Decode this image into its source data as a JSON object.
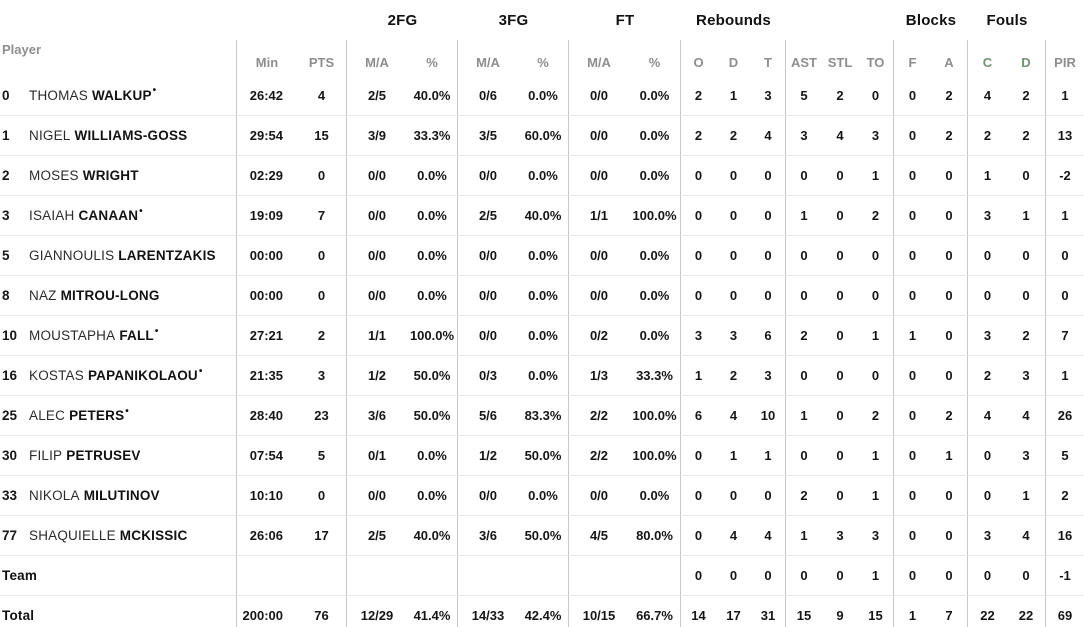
{
  "table": {
    "groups": {
      "fg2": "2FG",
      "fg3": "3FG",
      "ft": "FT",
      "rebounds": "Rebounds",
      "blocks": "Blocks",
      "fouls": "Fouls"
    },
    "headers": {
      "player": "Player",
      "min": "Min",
      "pts": "PTS",
      "ma": "M/A",
      "pct": "%",
      "reb_o": "O",
      "reb_d": "D",
      "reb_t": "T",
      "ast": "AST",
      "stl": "STL",
      "to": "TO",
      "blk_f": "F",
      "blk_a": "A",
      "foul_c": "C",
      "foul_d": "D",
      "pir": "PIR"
    },
    "starter_dot": "•",
    "rows": [
      {
        "num": "0",
        "first": "THOMAS",
        "last": "WALKUP",
        "starter": true,
        "stats": [
          "26:42",
          "4",
          "2/5",
          "40.0%",
          "0/6",
          "0.0%",
          "0/0",
          "0.0%",
          "2",
          "1",
          "3",
          "5",
          "2",
          "0",
          "0",
          "2",
          "4",
          "2",
          "1"
        ]
      },
      {
        "num": "1",
        "first": "NIGEL",
        "last": "WILLIAMS-GOSS",
        "starter": false,
        "stats": [
          "29:54",
          "15",
          "3/9",
          "33.3%",
          "3/5",
          "60.0%",
          "0/0",
          "0.0%",
          "2",
          "2",
          "4",
          "3",
          "4",
          "3",
          "0",
          "2",
          "2",
          "2",
          "13"
        ]
      },
      {
        "num": "2",
        "first": "MOSES",
        "last": "WRIGHT",
        "starter": false,
        "stats": [
          "02:29",
          "0",
          "0/0",
          "0.0%",
          "0/0",
          "0.0%",
          "0/0",
          "0.0%",
          "0",
          "0",
          "0",
          "0",
          "0",
          "1",
          "0",
          "0",
          "1",
          "0",
          "-2"
        ]
      },
      {
        "num": "3",
        "first": "ISAIAH",
        "last": "CANAAN",
        "starter": true,
        "stats": [
          "19:09",
          "7",
          "0/0",
          "0.0%",
          "2/5",
          "40.0%",
          "1/1",
          "100.0%",
          "0",
          "0",
          "0",
          "1",
          "0",
          "2",
          "0",
          "0",
          "3",
          "1",
          "1"
        ]
      },
      {
        "num": "5",
        "first": "GIANNOULIS",
        "last": "LARENTZAKIS",
        "starter": false,
        "stats": [
          "00:00",
          "0",
          "0/0",
          "0.0%",
          "0/0",
          "0.0%",
          "0/0",
          "0.0%",
          "0",
          "0",
          "0",
          "0",
          "0",
          "0",
          "0",
          "0",
          "0",
          "0",
          "0"
        ]
      },
      {
        "num": "8",
        "first": "NAZ",
        "last": "MITROU-LONG",
        "starter": false,
        "stats": [
          "00:00",
          "0",
          "0/0",
          "0.0%",
          "0/0",
          "0.0%",
          "0/0",
          "0.0%",
          "0",
          "0",
          "0",
          "0",
          "0",
          "0",
          "0",
          "0",
          "0",
          "0",
          "0"
        ]
      },
      {
        "num": "10",
        "first": "MOUSTAPHA",
        "last": "FALL",
        "starter": true,
        "stats": [
          "27:21",
          "2",
          "1/1",
          "100.0%",
          "0/0",
          "0.0%",
          "0/2",
          "0.0%",
          "3",
          "3",
          "6",
          "2",
          "0",
          "1",
          "1",
          "0",
          "3",
          "2",
          "7"
        ]
      },
      {
        "num": "16",
        "first": "KOSTAS",
        "last": "PAPANIKOLAOU",
        "starter": true,
        "stats": [
          "21:35",
          "3",
          "1/2",
          "50.0%",
          "0/3",
          "0.0%",
          "1/3",
          "33.3%",
          "1",
          "2",
          "3",
          "0",
          "0",
          "0",
          "0",
          "0",
          "2",
          "3",
          "1"
        ]
      },
      {
        "num": "25",
        "first": "ALEC",
        "last": "PETERS",
        "starter": true,
        "stats": [
          "28:40",
          "23",
          "3/6",
          "50.0%",
          "5/6",
          "83.3%",
          "2/2",
          "100.0%",
          "6",
          "4",
          "10",
          "1",
          "0",
          "2",
          "0",
          "2",
          "4",
          "4",
          "26"
        ]
      },
      {
        "num": "30",
        "first": "FILIP",
        "last": "PETRUSEV",
        "starter": false,
        "stats": [
          "07:54",
          "5",
          "0/1",
          "0.0%",
          "1/2",
          "50.0%",
          "2/2",
          "100.0%",
          "0",
          "1",
          "1",
          "0",
          "0",
          "1",
          "0",
          "1",
          "0",
          "3",
          "5"
        ]
      },
      {
        "num": "33",
        "first": "NIKOLA",
        "last": "MILUTINOV",
        "starter": false,
        "stats": [
          "10:10",
          "0",
          "0/0",
          "0.0%",
          "0/0",
          "0.0%",
          "0/0",
          "0.0%",
          "0",
          "0",
          "0",
          "2",
          "0",
          "1",
          "0",
          "0",
          "0",
          "1",
          "2"
        ]
      },
      {
        "num": "77",
        "first": "SHAQUIELLE",
        "last": "MCKISSIC",
        "starter": false,
        "stats": [
          "26:06",
          "17",
          "2/5",
          "40.0%",
          "3/6",
          "50.0%",
          "4/5",
          "80.0%",
          "0",
          "4",
          "4",
          "1",
          "3",
          "3",
          "0",
          "0",
          "3",
          "4",
          "16"
        ]
      },
      {
        "label": "Team",
        "starter": false,
        "stats": [
          "",
          "",
          "",
          "",
          "",
          "",
          "",
          "",
          "0",
          "0",
          "0",
          "0",
          "0",
          "1",
          "0",
          "0",
          "0",
          "0",
          "-1"
        ]
      },
      {
        "label": "Total",
        "starter": false,
        "stats": [
          "200:00",
          "76",
          "12/29",
          "41.4%",
          "14/33",
          "42.4%",
          "10/15",
          "66.7%",
          "14",
          "17",
          "31",
          "15",
          "9",
          "15",
          "1",
          "7",
          "22",
          "22",
          "69"
        ]
      }
    ]
  },
  "colors": {
    "text": "#1a1a1a",
    "muted_header": "#8e8e8e",
    "fouls_header": "#6f9373",
    "border_vertical": "#c6c6c6",
    "border_horizontal": "#e8e8e8",
    "background": "#ffffff"
  }
}
